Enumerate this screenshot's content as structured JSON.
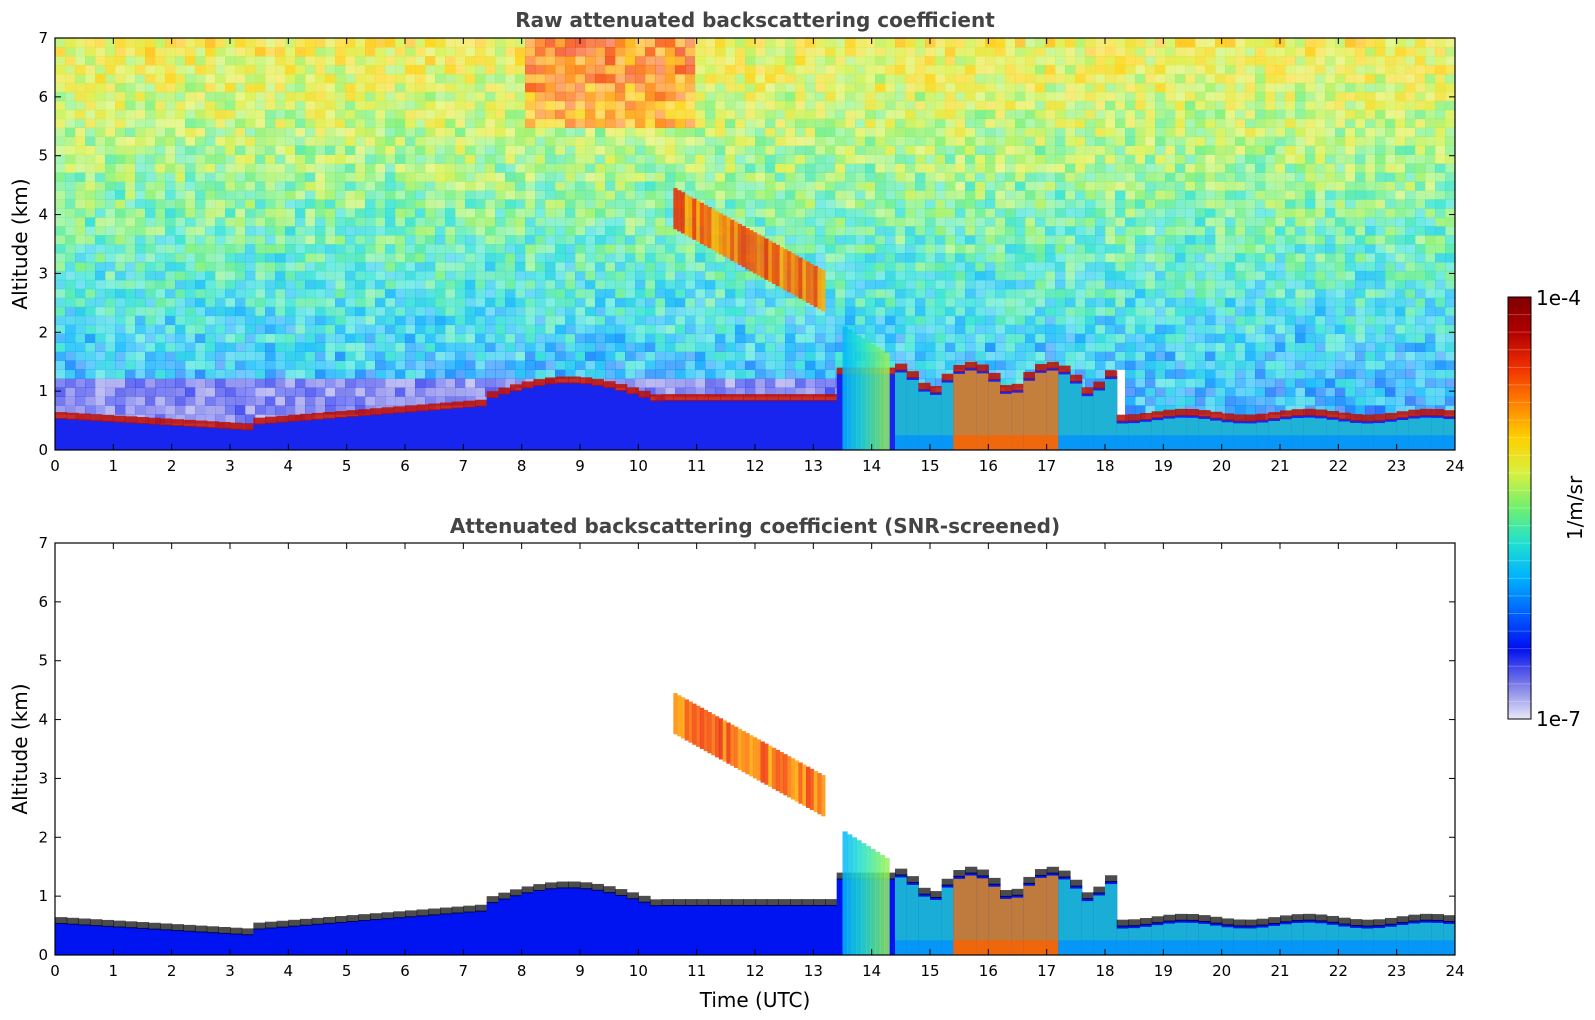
{
  "chart_data": [
    {
      "type": "heatmap",
      "title": "Raw attenuated backscattering coefficient",
      "xlabel": "",
      "ylabel": "Altitude (km)",
      "xlim": [
        0,
        24
      ],
      "ylim": [
        0,
        7
      ],
      "xticks": [
        "0",
        "1",
        "2",
        "3",
        "4",
        "5",
        "6",
        "7",
        "8",
        "9",
        "10",
        "11",
        "12",
        "13",
        "14",
        "15",
        "16",
        "17",
        "18",
        "19",
        "20",
        "21",
        "22",
        "23",
        "24"
      ],
      "yticks": [
        "0",
        "1",
        "2",
        "3",
        "4",
        "5",
        "6",
        "7"
      ],
      "screened": false
    },
    {
      "type": "heatmap",
      "title": "Attenuated backscattering coefficient (SNR-screened)",
      "xlabel": "Time (UTC)",
      "ylabel": "Altitude (km)",
      "xlim": [
        0,
        24
      ],
      "ylim": [
        0,
        7
      ],
      "xticks": [
        "0",
        "1",
        "2",
        "3",
        "4",
        "5",
        "6",
        "7",
        "8",
        "9",
        "10",
        "11",
        "12",
        "13",
        "14",
        "15",
        "16",
        "17",
        "18",
        "19",
        "20",
        "21",
        "22",
        "23",
        "24"
      ],
      "yticks": [
        "0",
        "1",
        "2",
        "3",
        "4",
        "5",
        "6",
        "7"
      ],
      "screened": true
    }
  ],
  "colorbar": {
    "label": "1/m/sr",
    "max_label": "1e-4",
    "min_label": "1e-7",
    "scale": "log",
    "stops": [
      "#e8e8f8",
      "#7a7ae8",
      "#0010f0",
      "#0060ff",
      "#00b0ff",
      "#20e0d0",
      "#70f070",
      "#d8f040",
      "#ffd000",
      "#ff8000",
      "#f03000",
      "#b00000",
      "#800000"
    ]
  }
}
